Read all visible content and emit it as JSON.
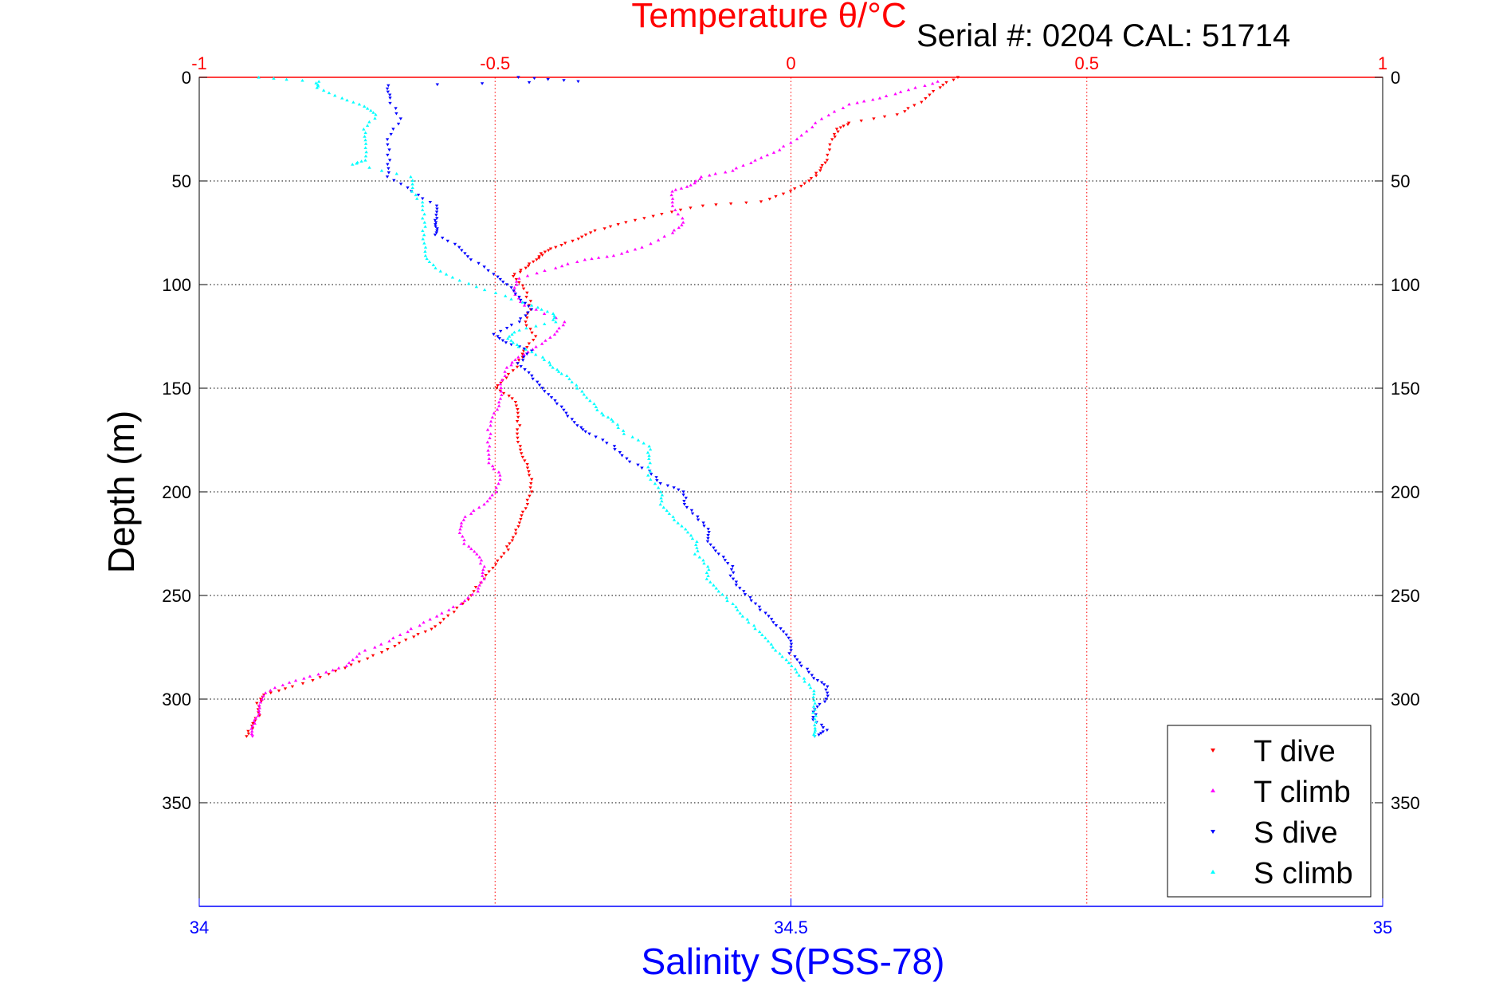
{
  "header": {
    "top_axis_label": "Temperature θ/°C",
    "serial": "Serial #: 0204  CAL: 51714"
  },
  "colors": {
    "t_dive": "#ff0000",
    "t_climb": "#ff00ff",
    "s_dive": "#0000ff",
    "s_climb": "#00ffff",
    "temperature_axis": "#ff0000",
    "salinity_axis": "#0000ff"
  },
  "chart_data": {
    "type": "scatter",
    "ylabel": "Depth (m)",
    "xlabel": "Salinity S(PSS-78)",
    "x2label": "Temperature θ/°C",
    "ylim": [
      0,
      400
    ],
    "y_reversed": true,
    "y_ticks": [
      0,
      50,
      100,
      150,
      200,
      250,
      300,
      350
    ],
    "xlim_salinity": [
      34,
      35
    ],
    "x_ticks_salinity": [
      34,
      34.5,
      35
    ],
    "x_tick_labels_salinity": [
      "34",
      "34.5",
      "35"
    ],
    "xlim_temperature": [
      -1,
      1
    ],
    "x_ticks_temperature": [
      -1,
      -0.5,
      0,
      0.5,
      1
    ],
    "x_tick_labels_temperature": [
      "-1",
      "-0.5",
      "0",
      "0.5",
      "1"
    ],
    "grid": true,
    "legend_position": "bottom-right",
    "series": [
      {
        "name": "T dive",
        "axis": "temperature",
        "points": [
          [
            0.28,
            0
          ],
          [
            0.25,
            5
          ],
          [
            0.22,
            12
          ],
          [
            0.18,
            18
          ],
          [
            0.1,
            22
          ],
          [
            0.08,
            25
          ],
          [
            0.07,
            30
          ],
          [
            0.06,
            40
          ],
          [
            0.05,
            45
          ],
          [
            0.03,
            50
          ],
          [
            0.0,
            55
          ],
          [
            -0.05,
            60
          ],
          [
            -0.15,
            62
          ],
          [
            -0.22,
            66
          ],
          [
            -0.28,
            70
          ],
          [
            -0.33,
            74
          ],
          [
            -0.36,
            78
          ],
          [
            -0.4,
            82
          ],
          [
            -0.42,
            85
          ],
          [
            -0.43,
            88
          ],
          [
            -0.45,
            92
          ],
          [
            -0.47,
            96
          ],
          [
            -0.45,
            102
          ],
          [
            -0.44,
            110
          ],
          [
            -0.45,
            118
          ],
          [
            -0.43,
            125
          ],
          [
            -0.45,
            132
          ],
          [
            -0.46,
            138
          ],
          [
            -0.48,
            145
          ],
          [
            -0.5,
            150
          ],
          [
            -0.47,
            155
          ],
          [
            -0.46,
            162
          ],
          [
            -0.46,
            170
          ],
          [
            -0.46,
            178
          ],
          [
            -0.45,
            185
          ],
          [
            -0.44,
            192
          ],
          [
            -0.44,
            200
          ],
          [
            -0.45,
            208
          ],
          [
            -0.46,
            215
          ],
          [
            -0.47,
            222
          ],
          [
            -0.48,
            228
          ],
          [
            -0.5,
            235
          ],
          [
            -0.52,
            242
          ],
          [
            -0.54,
            250
          ],
          [
            -0.57,
            258
          ],
          [
            -0.6,
            265
          ],
          [
            -0.64,
            270
          ],
          [
            -0.68,
            276
          ],
          [
            -0.73,
            282
          ],
          [
            -0.78,
            288
          ],
          [
            -0.84,
            294
          ],
          [
            -0.89,
            298
          ],
          [
            -0.9,
            302
          ],
          [
            -0.9,
            308
          ],
          [
            -0.91,
            313
          ],
          [
            -0.92,
            318
          ]
        ]
      },
      {
        "name": "T climb",
        "axis": "temperature",
        "points": [
          [
            0.25,
            2
          ],
          [
            0.2,
            6
          ],
          [
            0.15,
            10
          ],
          [
            0.1,
            13
          ],
          [
            0.05,
            20
          ],
          [
            0.02,
            28
          ],
          [
            -0.02,
            35
          ],
          [
            -0.06,
            40
          ],
          [
            -0.1,
            45
          ],
          [
            -0.15,
            48
          ],
          [
            -0.17,
            52
          ],
          [
            -0.2,
            55
          ],
          [
            -0.2,
            62
          ],
          [
            -0.18,
            70
          ],
          [
            -0.2,
            75
          ],
          [
            -0.25,
            82
          ],
          [
            -0.3,
            86
          ],
          [
            -0.35,
            88
          ],
          [
            -0.4,
            92
          ],
          [
            -0.46,
            97
          ],
          [
            -0.47,
            103
          ],
          [
            -0.45,
            110
          ],
          [
            -0.38,
            118
          ],
          [
            -0.4,
            124
          ],
          [
            -0.43,
            130
          ],
          [
            -0.46,
            135
          ],
          [
            -0.48,
            140
          ],
          [
            -0.49,
            148
          ],
          [
            -0.49,
            155
          ],
          [
            -0.5,
            162
          ],
          [
            -0.51,
            170
          ],
          [
            -0.51,
            178
          ],
          [
            -0.51,
            186
          ],
          [
            -0.49,
            192
          ],
          [
            -0.5,
            200
          ],
          [
            -0.52,
            206
          ],
          [
            -0.55,
            212
          ],
          [
            -0.56,
            218
          ],
          [
            -0.55,
            225
          ],
          [
            -0.53,
            230
          ],
          [
            -0.52,
            236
          ],
          [
            -0.52,
            242
          ],
          [
            -0.53,
            248
          ],
          [
            -0.56,
            254
          ],
          [
            -0.6,
            260
          ],
          [
            -0.64,
            266
          ],
          [
            -0.68,
            272
          ],
          [
            -0.73,
            278
          ],
          [
            -0.75,
            284
          ],
          [
            -0.8,
            288
          ],
          [
            -0.85,
            292
          ],
          [
            -0.89,
            297
          ],
          [
            -0.9,
            303
          ],
          [
            -0.9,
            308
          ],
          [
            -0.91,
            313
          ],
          [
            -0.91,
            318
          ]
        ]
      },
      {
        "name": "S dive",
        "axis": "salinity",
        "points": [
          [
            34.27,
            0
          ],
          [
            34.32,
            2
          ],
          [
            34.16,
            4
          ],
          [
            34.16,
            10
          ],
          [
            34.17,
            20
          ],
          [
            34.16,
            30
          ],
          [
            34.16,
            40
          ],
          [
            34.16,
            48
          ],
          [
            34.18,
            55
          ],
          [
            34.2,
            62
          ],
          [
            34.2,
            68
          ],
          [
            34.2,
            72
          ],
          [
            34.2,
            76
          ],
          [
            34.22,
            82
          ],
          [
            34.23,
            88
          ],
          [
            34.25,
            95
          ],
          [
            34.26,
            100
          ],
          [
            34.27,
            106
          ],
          [
            34.28,
            112
          ],
          [
            34.27,
            118
          ],
          [
            34.25,
            124
          ],
          [
            34.26,
            128
          ],
          [
            34.28,
            132
          ],
          [
            34.27,
            138
          ],
          [
            34.28,
            144
          ],
          [
            34.29,
            150
          ],
          [
            34.3,
            156
          ],
          [
            34.31,
            162
          ],
          [
            34.32,
            168
          ],
          [
            34.33,
            172
          ],
          [
            34.35,
            178
          ],
          [
            34.36,
            184
          ],
          [
            34.38,
            190
          ],
          [
            34.39,
            196
          ],
          [
            34.41,
            200
          ],
          [
            34.41,
            206
          ],
          [
            34.42,
            212
          ],
          [
            34.43,
            218
          ],
          [
            34.43,
            224
          ],
          [
            34.44,
            230
          ],
          [
            34.45,
            236
          ],
          [
            34.45,
            242
          ],
          [
            34.46,
            248
          ],
          [
            34.47,
            254
          ],
          [
            34.48,
            260
          ],
          [
            34.49,
            266
          ],
          [
            34.5,
            272
          ],
          [
            34.5,
            278
          ],
          [
            34.51,
            284
          ],
          [
            34.52,
            290
          ],
          [
            34.53,
            294
          ],
          [
            34.53,
            300
          ],
          [
            34.52,
            305
          ],
          [
            34.52,
            310
          ],
          [
            34.53,
            315
          ],
          [
            34.52,
            318
          ]
        ]
      },
      {
        "name": "S climb",
        "axis": "salinity",
        "points": [
          [
            34.05,
            0
          ],
          [
            34.1,
            2
          ],
          [
            34.1,
            5
          ],
          [
            34.12,
            10
          ],
          [
            34.14,
            14
          ],
          [
            34.15,
            18
          ],
          [
            34.14,
            25
          ],
          [
            34.14,
            32
          ],
          [
            34.14,
            40
          ],
          [
            34.13,
            42
          ],
          [
            34.18,
            48
          ],
          [
            34.18,
            55
          ],
          [
            34.19,
            62
          ],
          [
            34.19,
            70
          ],
          [
            34.19,
            78
          ],
          [
            34.19,
            86
          ],
          [
            34.2,
            92
          ],
          [
            34.22,
            98
          ],
          [
            34.25,
            104
          ],
          [
            34.28,
            110
          ],
          [
            34.3,
            114
          ],
          [
            34.3,
            118
          ],
          [
            34.27,
            122
          ],
          [
            34.26,
            126
          ],
          [
            34.27,
            130
          ],
          [
            34.29,
            135
          ],
          [
            34.3,
            140
          ],
          [
            34.31,
            144
          ],
          [
            34.32,
            150
          ],
          [
            34.33,
            156
          ],
          [
            34.34,
            162
          ],
          [
            34.35,
            166
          ],
          [
            34.36,
            172
          ],
          [
            34.38,
            178
          ],
          [
            34.38,
            184
          ],
          [
            34.38,
            192
          ],
          [
            34.39,
            200
          ],
          [
            34.39,
            206
          ],
          [
            34.4,
            212
          ],
          [
            34.41,
            218
          ],
          [
            34.42,
            224
          ],
          [
            34.42,
            230
          ],
          [
            34.43,
            236
          ],
          [
            34.43,
            242
          ],
          [
            34.44,
            248
          ],
          [
            34.45,
            254
          ],
          [
            34.46,
            260
          ],
          [
            34.47,
            266
          ],
          [
            34.48,
            272
          ],
          [
            34.49,
            278
          ],
          [
            34.5,
            284
          ],
          [
            34.51,
            290
          ],
          [
            34.52,
            296
          ],
          [
            34.52,
            302
          ],
          [
            34.52,
            308
          ],
          [
            34.52,
            314
          ],
          [
            34.52,
            318
          ]
        ]
      }
    ]
  }
}
